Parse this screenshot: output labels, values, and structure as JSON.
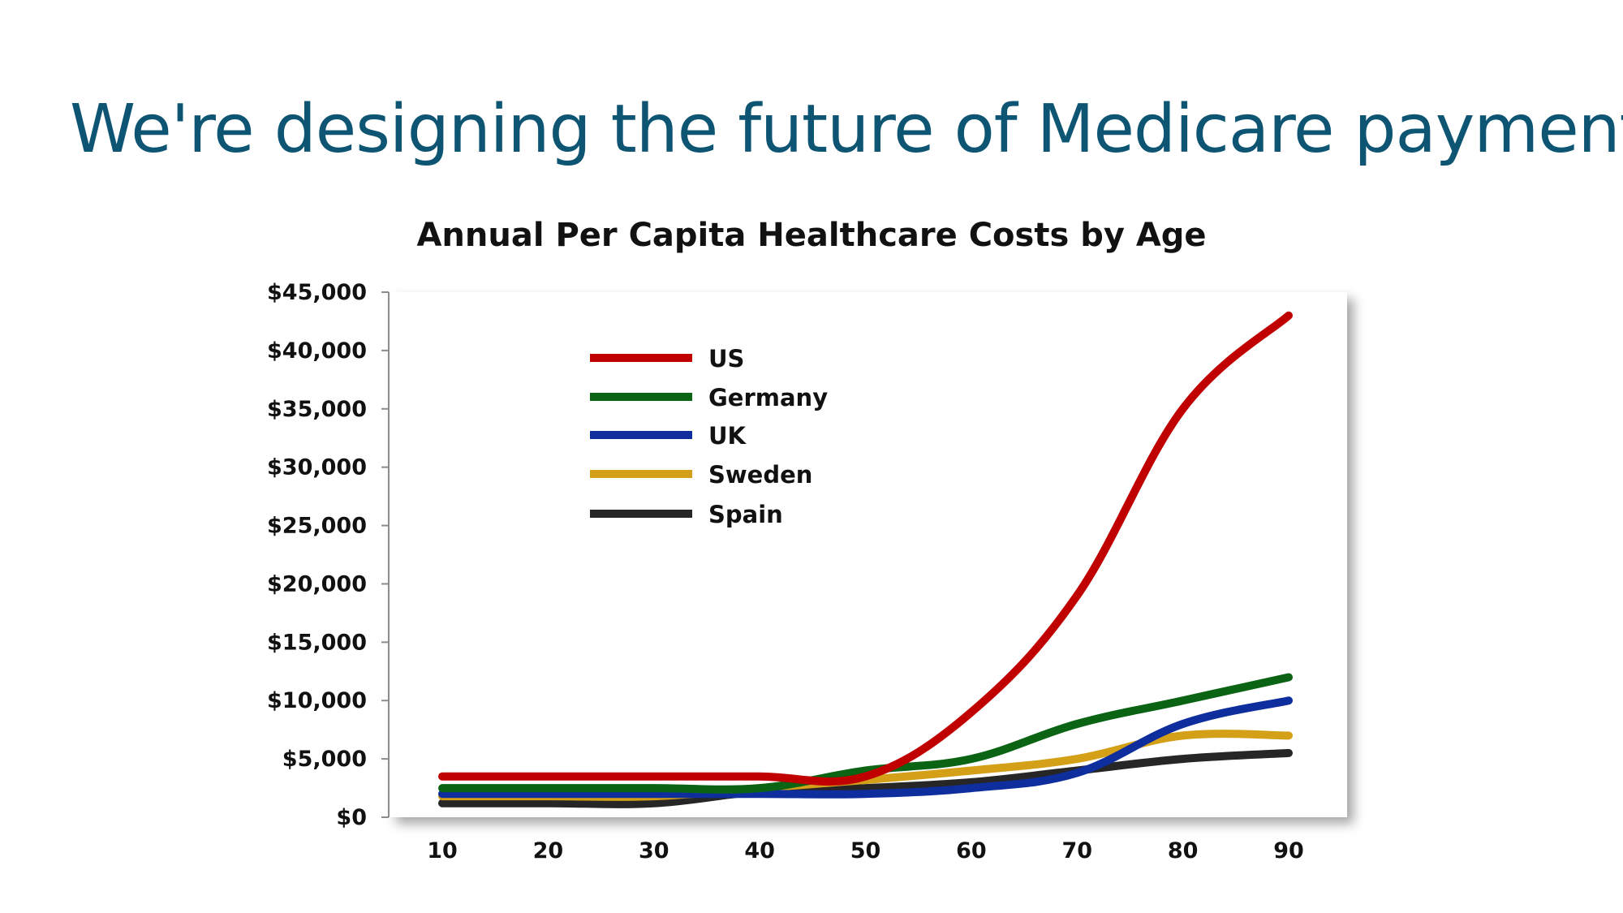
{
  "slide": {
    "title": "We're designing the future of Medicare payments"
  },
  "chart_data": {
    "type": "line",
    "title": "Annual Per Capita Healthcare Costs by Age",
    "xlabel": "",
    "ylabel": "",
    "x": [
      10,
      20,
      30,
      40,
      50,
      60,
      70,
      80,
      90
    ],
    "x_tick_labels": [
      "10",
      "20",
      "30",
      "40",
      "50",
      "60",
      "70",
      "80",
      "90"
    ],
    "ylim": [
      0,
      45000
    ],
    "y_ticks": [
      0,
      5000,
      10000,
      15000,
      20000,
      25000,
      30000,
      35000,
      40000,
      45000
    ],
    "y_tick_labels": [
      "$0",
      "$5,000",
      "$10,000",
      "$15,000",
      "$20,000",
      "$25,000",
      "$30,000",
      "$35,000",
      "$40,000",
      "$45,000"
    ],
    "grid": false,
    "legend_position": "top-left",
    "series": [
      {
        "name": "US",
        "color": "#c00000",
        "values": [
          3500,
          3500,
          3500,
          3500,
          3500,
          9000,
          19000,
          35000,
          43000
        ]
      },
      {
        "name": "Germany",
        "color": "#0a6414",
        "values": [
          2500,
          2500,
          2500,
          2500,
          4000,
          5000,
          8000,
          10000,
          12000
        ]
      },
      {
        "name": "UK",
        "color": "#0f2e9e",
        "values": [
          2000,
          2000,
          2000,
          2000,
          2000,
          2500,
          3800,
          8000,
          10000
        ]
      },
      {
        "name": "Sweden",
        "color": "#d4a017",
        "values": [
          1800,
          1800,
          1800,
          2500,
          3200,
          4000,
          5000,
          7000,
          7000
        ]
      },
      {
        "name": "Spain",
        "color": "#262626",
        "values": [
          1200,
          1200,
          1200,
          2200,
          2500,
          3000,
          4000,
          5000,
          5500
        ]
      }
    ]
  }
}
